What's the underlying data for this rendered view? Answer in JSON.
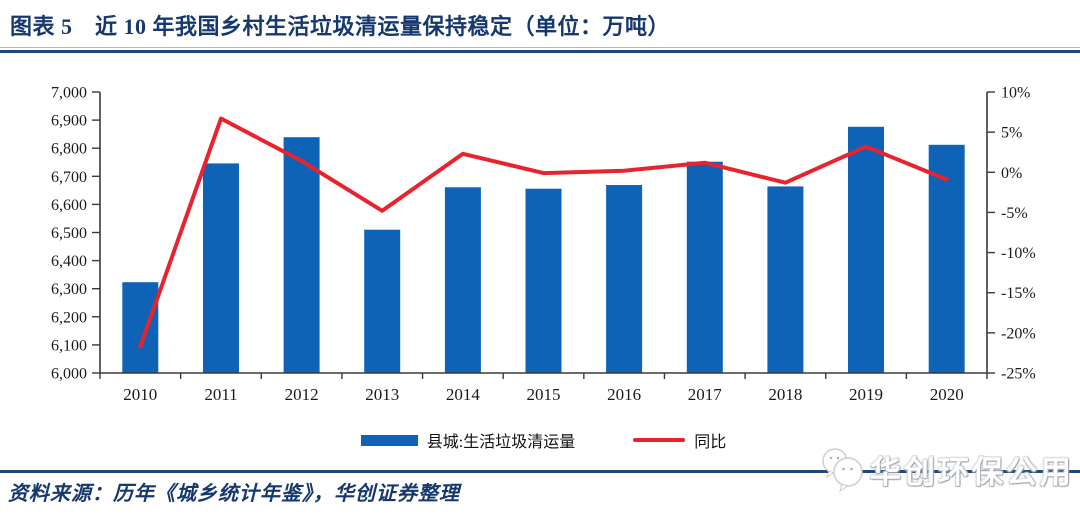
{
  "header": {
    "title": "图表 5　近 10 年我国乡村生活垃圾清运量保持稳定（单位：万吨）"
  },
  "chart_data": {
    "type": "bar",
    "subtype": "bar-line-combo",
    "categories": [
      "2010",
      "2011",
      "2012",
      "2013",
      "2014",
      "2015",
      "2016",
      "2017",
      "2018",
      "2019",
      "2020"
    ],
    "series": [
      {
        "name": "县城:生活垃圾清运量",
        "type": "bar",
        "axis": "left",
        "color": "#0E63B6",
        "values": [
          6323,
          6746,
          6839,
          6510,
          6661,
          6656,
          6669,
          6752,
          6664,
          6876,
          6812
        ]
      },
      {
        "name": "同比",
        "type": "line",
        "axis": "right",
        "color": "#E8232E",
        "values": [
          -21.7,
          6.7,
          1.4,
          -4.8,
          2.3,
          -0.1,
          0.2,
          1.2,
          -1.3,
          3.2,
          -0.9
        ]
      }
    ],
    "left_axis": {
      "min": 6000,
      "max": 7000,
      "tick_step": 100,
      "tick_labels": [
        "7,000",
        "6,900",
        "6,800",
        "6,700",
        "6,600",
        "6,500",
        "6,400",
        "6,300",
        "6,200",
        "6,100",
        "6,000"
      ]
    },
    "right_axis": {
      "min": -25,
      "max": 10,
      "tick_step": 5,
      "tick_labels": [
        "10%",
        "5%",
        "0%",
        "-5%",
        "-10%",
        "-15%",
        "-20%",
        "-25%"
      ]
    },
    "grid": "off",
    "legend_position": "bottom"
  },
  "footer": {
    "source": "资料来源：历年《城乡统计年鉴》，华创证券整理"
  },
  "watermark": {
    "text": "华创环保公用",
    "icon": "wechat-icon"
  },
  "colors": {
    "title_navy": "#17386e",
    "separator_navy": "#1f4779",
    "bar_blue": "#0E63B6",
    "line_red": "#E8232E"
  }
}
